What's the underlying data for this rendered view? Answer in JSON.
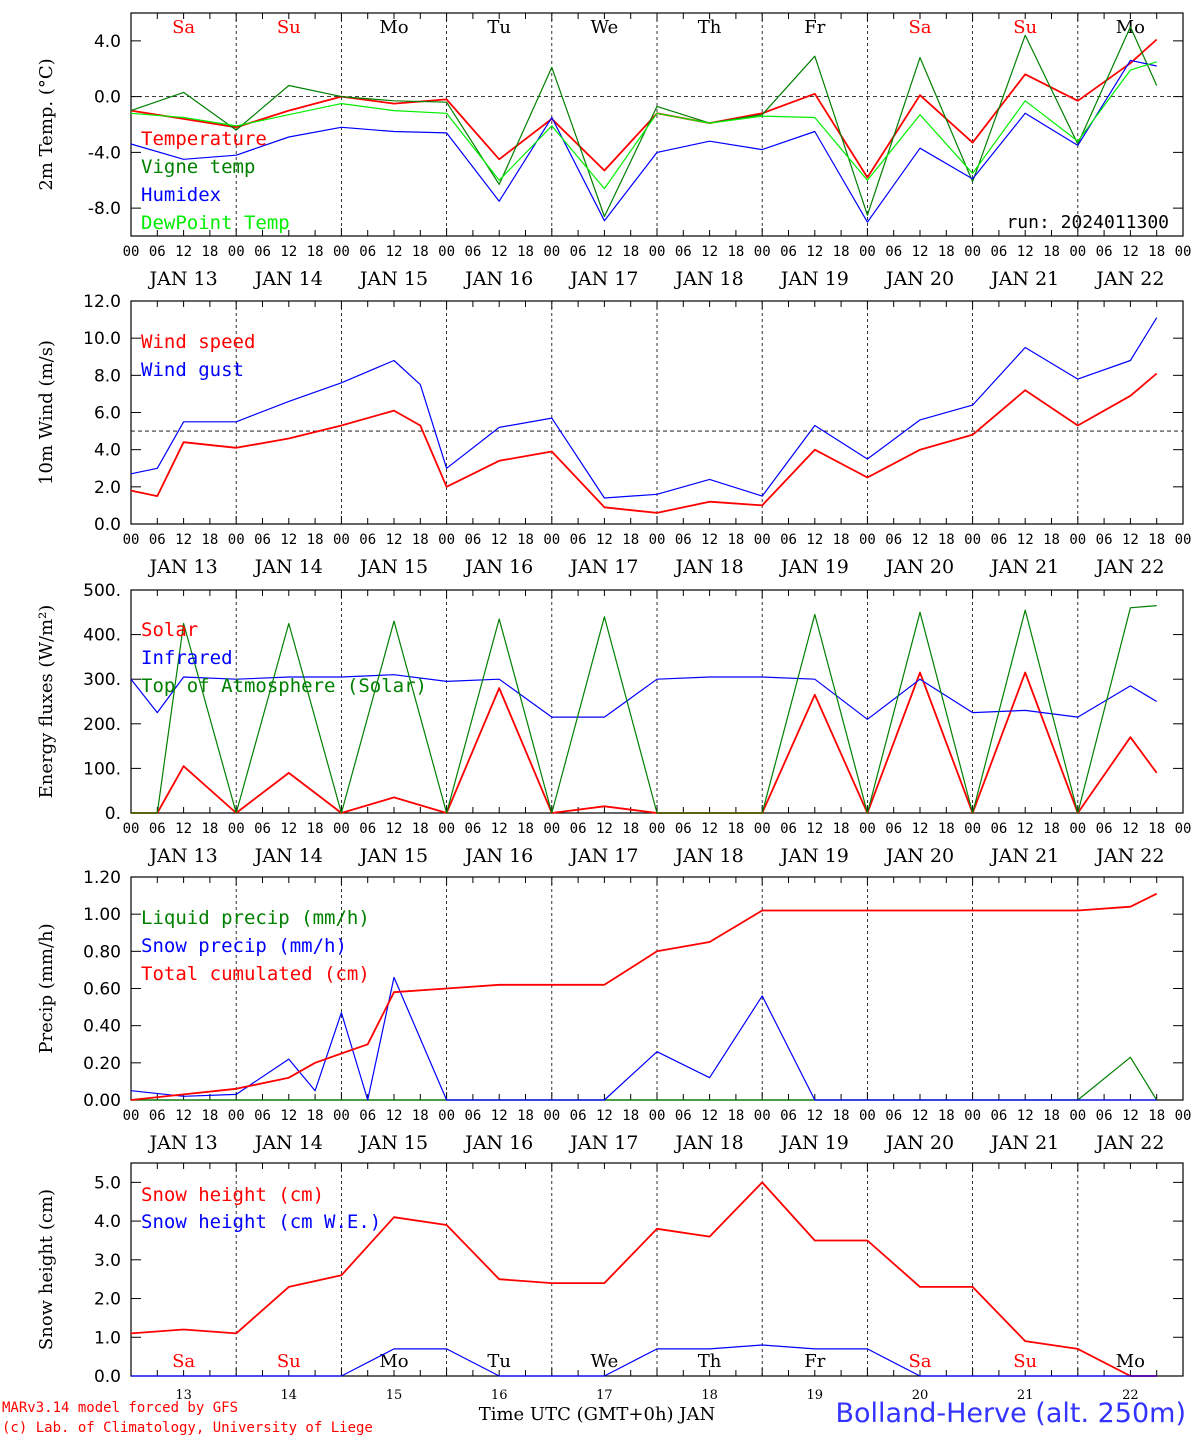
{
  "chart_data": [
    {
      "type": "line",
      "ylabel": "2m Temp. (°C)",
      "ylim": [
        -10,
        6
      ],
      "yticks": [
        "4.0",
        "0.0",
        "-4.0",
        "-8.0"
      ],
      "ytick_values": [
        4,
        0,
        -4,
        -8
      ],
      "ref_line": 0,
      "annotation": "run: 2024011300",
      "day_names": [
        "Sa",
        "Su",
        "Mo",
        "Tu",
        "We",
        "Th",
        "Fr",
        "Sa",
        "Su",
        "Mo"
      ],
      "x": [
        0,
        12,
        24,
        36,
        48,
        60,
        72,
        84,
        96,
        108,
        120,
        132,
        144,
        156,
        168,
        180,
        192,
        204,
        216,
        228,
        234
      ],
      "series": [
        {
          "name": "Temperature",
          "color": "#ff0000",
          "values": [
            -1,
            -1.6,
            -2.2,
            -1.0,
            0.0,
            -0.5,
            -0.2,
            -4.5,
            -1.6,
            -5.3,
            -1.2,
            -1.9,
            -1.2,
            0.2,
            -5.8,
            0.1,
            -3.3,
            1.6,
            -0.3,
            2.4,
            4.1
          ]
        },
        {
          "name": "Vigne temp",
          "color": "#008000",
          "values": [
            -1,
            0.3,
            -2.4,
            0.8,
            0.0,
            -0.3,
            -0.4,
            -6.3,
            2.1,
            -8.6,
            -0.7,
            -1.9,
            -1.3,
            2.9,
            -8.5,
            2.8,
            -6.1,
            4.4,
            -3.4,
            5.0,
            0.8
          ]
        },
        {
          "name": "Humidex",
          "color": "#0000ff",
          "values": [
            -3.4,
            -4.5,
            -4.2,
            -2.9,
            -2.2,
            -2.5,
            -2.6,
            -7.5,
            -1.5,
            -8.9,
            -4.0,
            -3.2,
            -3.8,
            -2.5,
            -9.0,
            -3.7,
            -5.9,
            -1.2,
            -3.5,
            2.6,
            2.2
          ]
        },
        {
          "name": "DewPoint Temp",
          "color": "#00ee00",
          "values": [
            -1.2,
            -1.5,
            -2.1,
            -1.3,
            -0.5,
            -1.0,
            -1.2,
            -6.0,
            -2.1,
            -6.6,
            -1.2,
            -1.9,
            -1.4,
            -1.5,
            -6.0,
            -1.3,
            -5.5,
            -0.3,
            -3.2,
            1.9,
            2.5
          ]
        }
      ]
    },
    {
      "type": "line",
      "ylabel": "10m Wind (m/s)",
      "ylim": [
        0,
        12
      ],
      "yticks": [
        "12.0",
        "10.0",
        "8.0",
        "6.0",
        "4.0",
        "2.0",
        "0.0"
      ],
      "ytick_values": [
        12,
        10,
        8,
        6,
        4,
        2,
        0
      ],
      "ref_line": 5,
      "x": [
        0,
        6,
        12,
        24,
        36,
        48,
        60,
        66,
        72,
        84,
        96,
        108,
        120,
        132,
        144,
        156,
        168,
        180,
        192,
        204,
        216,
        228,
        234
      ],
      "series": [
        {
          "name": "Wind speed",
          "color": "#ff0000",
          "values": [
            1.8,
            1.5,
            4.4,
            4.1,
            4.6,
            5.3,
            6.1,
            5.3,
            2.0,
            3.4,
            3.9,
            0.9,
            0.6,
            1.2,
            1.0,
            4.0,
            2.5,
            4.0,
            4.8,
            7.2,
            5.3,
            6.9,
            8.1
          ]
        },
        {
          "name": "Wind gust",
          "color": "#0000ff",
          "values": [
            2.7,
            3.0,
            5.5,
            5.5,
            6.6,
            7.6,
            8.8,
            7.5,
            3.0,
            5.2,
            5.7,
            1.4,
            1.6,
            2.4,
            1.5,
            5.3,
            3.5,
            5.6,
            6.4,
            9.5,
            7.8,
            8.8,
            11.1
          ]
        }
      ]
    },
    {
      "type": "line",
      "ylabel": "Energy fluxes (W/m²)",
      "ylim": [
        0,
        500
      ],
      "yticks": [
        "500.",
        "400.",
        "300.",
        "200.",
        "100.",
        "0."
      ],
      "ytick_values": [
        500,
        400,
        300,
        200,
        100,
        0
      ],
      "x": [
        0,
        6,
        12,
        24,
        36,
        48,
        60,
        72,
        84,
        96,
        108,
        120,
        132,
        144,
        156,
        168,
        180,
        192,
        204,
        216,
        228,
        234
      ],
      "series": [
        {
          "name": "Solar",
          "color": "#ff0000",
          "values": [
            0,
            0,
            105,
            0,
            90,
            0,
            35,
            0,
            280,
            0,
            15,
            0,
            0,
            0,
            265,
            0,
            315,
            0,
            315,
            0,
            170,
            90
          ]
        },
        {
          "name": "Infrared",
          "color": "#0000ff",
          "values": [
            300,
            225,
            305,
            300,
            305,
            305,
            310,
            295,
            300,
            215,
            215,
            300,
            305,
            305,
            300,
            210,
            300,
            225,
            230,
            215,
            285,
            250
          ]
        },
        {
          "name": "Top of Atmosphere (Solar)",
          "color": "#008000",
          "values": [
            0,
            0,
            425,
            0,
            425,
            0,
            430,
            0,
            435,
            0,
            440,
            0,
            0,
            0,
            445,
            0,
            450,
            0,
            455,
            0,
            460,
            465
          ]
        }
      ]
    },
    {
      "type": "line",
      "ylabel": "Precip (mm/h)",
      "ylim": [
        0,
        1.2
      ],
      "yticks": [
        "1.20",
        "1.00",
        "0.80",
        "0.60",
        "0.40",
        "0.20",
        "0.00"
      ],
      "ytick_values": [
        1.2,
        1.0,
        0.8,
        0.6,
        0.4,
        0.2,
        0
      ],
      "x": [
        0,
        12,
        24,
        36,
        42,
        48,
        54,
        60,
        72,
        84,
        96,
        108,
        120,
        132,
        144,
        156,
        168,
        180,
        192,
        204,
        216,
        228,
        234
      ],
      "series": [
        {
          "name": "Liquid precip (mm/h)",
          "color": "#008000",
          "values": [
            0,
            0,
            0,
            0,
            0,
            0,
            0,
            0,
            0,
            0,
            0,
            0,
            0,
            0,
            0,
            0,
            0,
            0,
            0,
            0,
            0,
            0.23,
            0
          ]
        },
        {
          "name": "Snow precip (mm/h)",
          "color": "#0000ff",
          "values": [
            0.05,
            0.02,
            0.03,
            0.22,
            0.05,
            0.47,
            0.0,
            0.66,
            0.0,
            0.0,
            0.0,
            0.0,
            0.26,
            0.12,
            0.56,
            0.0,
            0.0,
            0.0,
            0.0,
            0.0,
            0.0,
            0.0,
            0.0
          ]
        },
        {
          "name": "Total cumulated (cm)",
          "color": "#ff0000",
          "values": [
            0,
            0.03,
            0.06,
            0.12,
            0.2,
            0.25,
            0.3,
            0.58,
            0.6,
            0.62,
            0.62,
            0.62,
            0.8,
            0.85,
            1.02,
            1.02,
            1.02,
            1.02,
            1.02,
            1.02,
            1.02,
            1.04,
            1.11
          ]
        }
      ]
    },
    {
      "type": "line",
      "ylabel": "Snow height (cm)",
      "ylim": [
        0,
        5.5
      ],
      "yticks": [
        "5.0",
        "4.0",
        "3.0",
        "2.0",
        "1.0",
        "0.0"
      ],
      "ytick_values": [
        5,
        4,
        3,
        2,
        1,
        0
      ],
      "day_names": [
        "Sa",
        "Su",
        "Mo",
        "Tu",
        "We",
        "Th",
        "Fr",
        "Sa",
        "Su",
        "Mo"
      ],
      "x_day_labels": [
        "13",
        "14",
        "15",
        "16",
        "17",
        "18",
        "19",
        "20",
        "21",
        "22"
      ],
      "x": [
        0,
        12,
        24,
        36,
        48,
        60,
        72,
        84,
        96,
        108,
        120,
        132,
        144,
        156,
        168,
        180,
        192,
        204,
        216,
        228,
        234
      ],
      "series": [
        {
          "name": "Snow height (cm)",
          "color": "#ff0000",
          "values": [
            1.1,
            1.2,
            1.1,
            2.3,
            2.6,
            4.1,
            3.9,
            2.5,
            2.4,
            2.4,
            3.8,
            3.6,
            5.0,
            3.5,
            3.5,
            2.3,
            2.3,
            0.9,
            0.7,
            0,
            0
          ]
        },
        {
          "name": "Snow height (cm W.E.)",
          "color": "#0000ff",
          "values": [
            0,
            0,
            0,
            0,
            0,
            0.7,
            0.7,
            0,
            0,
            0,
            0.7,
            0.7,
            0.8,
            0.7,
            0.7,
            0,
            0,
            0,
            0,
            0,
            0
          ]
        }
      ]
    }
  ],
  "x_axis": {
    "hour_ticks": [
      "00",
      "06",
      "12",
      "18"
    ],
    "day_labels": [
      "JAN 13",
      "JAN 14",
      "JAN 15",
      "JAN 16",
      "JAN 17",
      "JAN 18",
      "JAN 19",
      "JAN 20",
      "JAN 21",
      "JAN 22"
    ]
  },
  "weekend_color": "#ff0000",
  "weekday_color": "#000000",
  "weekend_flags": [
    true,
    true,
    false,
    false,
    false,
    false,
    false,
    true,
    true,
    false
  ],
  "footer": {
    "model_line": "MARv3.14 model forced by GFS",
    "lab_line": "(c) Lab. of Climatology, University of Liege",
    "xlabel": "Time UTC (GMT+0h) JAN",
    "station": "Bolland-Herve (alt. 250m)"
  }
}
